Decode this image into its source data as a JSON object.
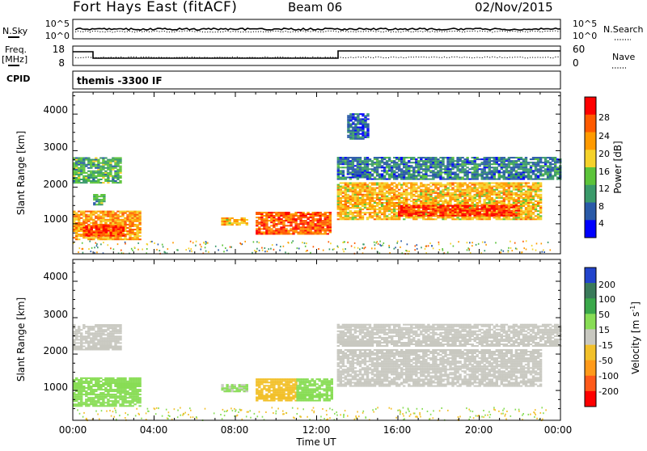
{
  "header": {
    "station": "Fort Hays East (fitACF)",
    "beam": "Beam 06",
    "date": "02/Nov/2015"
  },
  "top_panels": {
    "nsky_label": "N.Sky",
    "nsearch_label": "N.Search",
    "left_tick_high": "10^5",
    "left_tick_low": "10^0",
    "right_tick_high": "10^5",
    "right_tick_low": "10^0",
    "freq_label_1": "Freq.",
    "freq_label_2": "[MHz]",
    "freq_ticks": [
      "18",
      "8"
    ],
    "nave_label": "Nave",
    "nave_ticks": [
      "60",
      "0"
    ],
    "cpid_label": "CPID",
    "cpid_text": "themis -3300 IF"
  },
  "axes": {
    "ylabel": "Slant Range [km]",
    "xlabel": "Time UT",
    "yticks": [
      "4000",
      "3000",
      "2000",
      "1000"
    ],
    "xticks": [
      "00:00",
      "04:00",
      "08:00",
      "12:00",
      "16:00",
      "20:00",
      "00:00"
    ]
  },
  "power_bar": {
    "label": "Power [dB]",
    "ticks": [
      "28",
      "24",
      "20",
      "16",
      "12",
      "8",
      "4"
    ],
    "colors": [
      "#ff0000",
      "#ff5a00",
      "#ff9a00",
      "#f5d22a",
      "#5cc43a",
      "#3a9a6a",
      "#2a5aa8",
      "#0000ff"
    ]
  },
  "velocity_bar": {
    "label_main": "Velocity [m s",
    "label_sup": "-1",
    "label_end": "]",
    "ticks": [
      "200",
      "100",
      "50",
      "15",
      "-15",
      "-50",
      "-100",
      "-200"
    ],
    "colors": [
      "#2244cc",
      "#3a7a5a",
      "#3aa84a",
      "#88dd55",
      "#c8c8c0",
      "#f2c02a",
      "#ff9a1a",
      "#ff5a1a",
      "#ff0000"
    ]
  },
  "chart_data": [
    {
      "type": "heatmap",
      "title": "Power [dB]",
      "xlabel": "Time UT",
      "ylabel": "Slant Range [km]",
      "xlim": [
        0,
        24
      ],
      "ylim": [
        180,
        4600
      ],
      "regions": [
        {
          "t0": 0.0,
          "t1": 3.3,
          "r0": 550,
          "r1": 1350,
          "value": 22
        },
        {
          "t0": 0.5,
          "t1": 2.5,
          "r0": 650,
          "r1": 950,
          "value": 28
        },
        {
          "t0": 0.0,
          "t1": 2.3,
          "r0": 2100,
          "r1": 2800,
          "value": 12
        },
        {
          "t0": 1.0,
          "t1": 1.6,
          "r0": 1500,
          "r1": 1800,
          "value": 12
        },
        {
          "t0": 7.3,
          "t1": 8.5,
          "r0": 950,
          "r1": 1150,
          "value": 20
        },
        {
          "t0": 9.0,
          "t1": 12.7,
          "r0": 700,
          "r1": 1300,
          "value": 26
        },
        {
          "t0": 13.0,
          "t1": 23.0,
          "r0": 1100,
          "r1": 2100,
          "value": 20
        },
        {
          "t0": 16.0,
          "t1": 22.0,
          "r0": 1200,
          "r1": 1500,
          "value": 28
        },
        {
          "t0": 13.0,
          "t1": 24.0,
          "r0": 2200,
          "r1": 2800,
          "value": 8
        },
        {
          "t0": 13.5,
          "t1": 14.5,
          "r0": 3300,
          "r1": 4000,
          "value": 6
        }
      ]
    },
    {
      "type": "heatmap",
      "title": "Velocity [m s-1]",
      "xlabel": "Time UT",
      "ylabel": "Slant Range [km]",
      "xlim": [
        0,
        24
      ],
      "ylim": [
        180,
        4600
      ],
      "regions": [
        {
          "t0": 0.0,
          "t1": 3.3,
          "r0": 550,
          "r1": 1350,
          "value": 40
        },
        {
          "t0": 0.0,
          "t1": 2.3,
          "r0": 2100,
          "r1": 2800,
          "value": 0
        },
        {
          "t0": 7.3,
          "t1": 8.5,
          "r0": 950,
          "r1": 1150,
          "value": 20
        },
        {
          "t0": 9.0,
          "t1": 11.0,
          "r0": 700,
          "r1": 1300,
          "value": -40
        },
        {
          "t0": 11.0,
          "t1": 12.7,
          "r0": 700,
          "r1": 1300,
          "value": 30
        },
        {
          "t0": 13.0,
          "t1": 23.0,
          "r0": 1100,
          "r1": 2100,
          "value": 0
        },
        {
          "t0": 13.0,
          "t1": 24.0,
          "r0": 2200,
          "r1": 2800,
          "value": 0
        }
      ]
    }
  ]
}
